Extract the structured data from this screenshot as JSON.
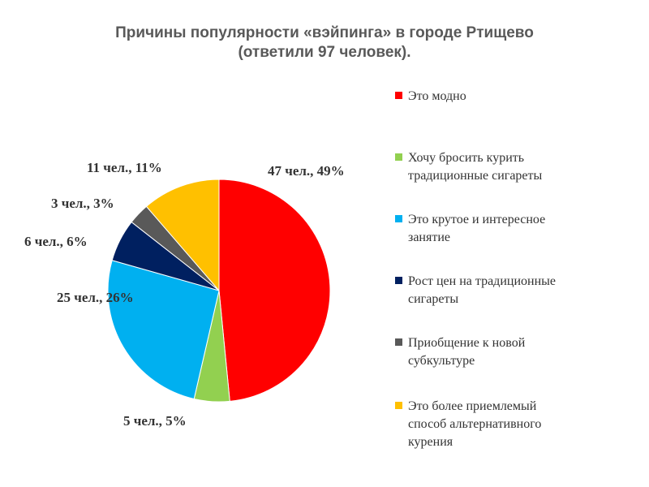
{
  "title_line1": "Причины популярности «вэйпинга» в городе Ртищево",
  "title_line2": "(ответили 97 человек).",
  "chart_data": {
    "type": "pie",
    "title": "Причины популярности «вэйпинга» в городе Ртищево (ответили 97 человек).",
    "respondents": 97,
    "slices": [
      {
        "category": "Это модно",
        "count": 47,
        "percent": 49,
        "label": "47 чел., 49%",
        "color": "#ff0000"
      },
      {
        "category": "Хочу бросить курить традиционные сигареты",
        "count": 5,
        "percent": 5,
        "label": "5 чел.,  5%",
        "color": "#92d050"
      },
      {
        "category": "Это крутое и интересное занятие",
        "count": 25,
        "percent": 26,
        "label": "25 чел., 26%",
        "color": "#00b0f0"
      },
      {
        "category": "Рост цен на традиционные сигареты",
        "count": 6,
        "percent": 6,
        "label": "6 чел., 6%",
        "color": "#002060"
      },
      {
        "category": "Приобщение к новой субкультуре",
        "count": 3,
        "percent": 3,
        "label": "3 чел., 3%",
        "color": "#595959"
      },
      {
        "category": "Это более приемлемый способ альтернативного курения",
        "count": 11,
        "percent": 11,
        "label": "11 чел., 11%",
        "color": "#ffc000"
      }
    ],
    "legend_position": "right"
  },
  "legend": [
    {
      "lines": [
        "Это модно"
      ],
      "color": "#ff0000"
    },
    {
      "lines": [
        "Хочу бросить курить",
        "традиционные сигареты"
      ],
      "color": "#92d050"
    },
    {
      "lines": [
        "Это крутое и интересное",
        "занятие"
      ],
      "color": "#00b0f0"
    },
    {
      "lines": [
        "Рост цен на традиционные",
        "сигареты"
      ],
      "color": "#002060"
    },
    {
      "lines": [
        "Приобщение к новой",
        "субкультуре"
      ],
      "color": "#595959"
    },
    {
      "lines": [
        "Это более приемлемый",
        "способ альтернативного",
        "курения"
      ],
      "color": "#ffc000"
    }
  ]
}
